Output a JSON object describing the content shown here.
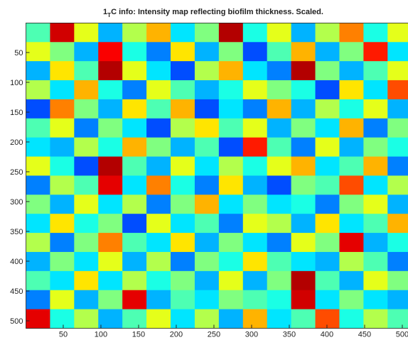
{
  "chart_data": {
    "type": "heatmap",
    "title": {
      "main": "1",
      "sub": "T",
      "rest": "C info: Intensity map reflecting biofilm thickness. Scaled."
    },
    "colormap": "jet",
    "clim": [
      0,
      1
    ],
    "xlim": [
      0.5,
      512.5
    ],
    "ylim": [
      0.5,
      512.5
    ],
    "y_reversed": true,
    "xticks": [
      50,
      100,
      150,
      200,
      250,
      300,
      350,
      400,
      450,
      500
    ],
    "yticks": [
      50,
      100,
      150,
      200,
      250,
      300,
      350,
      400,
      450,
      500
    ],
    "z": [
      [
        0.45,
        0.92,
        0.6,
        0.3,
        0.55,
        0.7,
        0.35,
        0.5,
        0.95,
        0.4,
        0.6,
        0.3,
        0.55,
        0.75,
        0.4,
        0.6
      ],
      [
        0.6,
        0.5,
        0.3,
        0.88,
        0.4,
        0.25,
        0.65,
        0.3,
        0.5,
        0.2,
        0.45,
        0.7,
        0.3,
        0.5,
        0.85,
        0.35
      ],
      [
        0.3,
        0.65,
        0.45,
        0.95,
        0.6,
        0.35,
        0.2,
        0.55,
        0.7,
        0.35,
        0.25,
        0.95,
        0.5,
        0.3,
        0.45,
        0.6
      ],
      [
        0.55,
        0.35,
        0.7,
        0.4,
        0.25,
        0.6,
        0.45,
        0.3,
        0.4,
        0.6,
        0.5,
        0.4,
        0.2,
        0.65,
        0.35,
        0.8
      ],
      [
        0.2,
        0.75,
        0.5,
        0.3,
        0.65,
        0.45,
        0.7,
        0.2,
        0.35,
        0.25,
        0.7,
        0.3,
        0.55,
        0.4,
        0.6,
        0.3
      ],
      [
        0.45,
        0.6,
        0.25,
        0.5,
        0.35,
        0.2,
        0.55,
        0.65,
        0.45,
        0.6,
        0.3,
        0.5,
        0.35,
        0.7,
        0.25,
        0.5
      ],
      [
        0.35,
        0.3,
        0.55,
        0.4,
        0.7,
        0.5,
        0.3,
        0.45,
        0.2,
        0.85,
        0.45,
        0.25,
        0.6,
        0.3,
        0.5,
        0.4
      ],
      [
        0.6,
        0.4,
        0.2,
        0.95,
        0.45,
        0.3,
        0.6,
        0.35,
        0.55,
        0.4,
        0.6,
        0.7,
        0.35,
        0.45,
        0.7,
        0.25
      ],
      [
        0.25,
        0.55,
        0.45,
        0.9,
        0.35,
        0.75,
        0.4,
        0.25,
        0.65,
        0.3,
        0.2,
        0.5,
        0.45,
        0.8,
        0.35,
        0.55
      ],
      [
        0.5,
        0.3,
        0.6,
        0.35,
        0.55,
        0.25,
        0.5,
        0.7,
        0.35,
        0.5,
        0.35,
        0.4,
        0.25,
        0.5,
        0.6,
        0.3
      ],
      [
        0.35,
        0.65,
        0.4,
        0.5,
        0.2,
        0.6,
        0.35,
        0.45,
        0.25,
        0.6,
        0.55,
        0.3,
        0.65,
        0.35,
        0.45,
        0.7
      ],
      [
        0.55,
        0.25,
        0.5,
        0.75,
        0.45,
        0.35,
        0.65,
        0.3,
        0.5,
        0.35,
        0.25,
        0.6,
        0.5,
        0.9,
        0.3,
        0.4
      ],
      [
        0.3,
        0.5,
        0.35,
        0.6,
        0.3,
        0.55,
        0.25,
        0.5,
        0.4,
        0.65,
        0.45,
        0.35,
        0.3,
        0.55,
        0.45,
        0.25
      ],
      [
        0.45,
        0.35,
        0.65,
        0.35,
        0.55,
        0.4,
        0.5,
        0.3,
        0.6,
        0.3,
        0.5,
        0.95,
        0.45,
        0.3,
        0.6,
        0.5
      ],
      [
        0.25,
        0.6,
        0.3,
        0.5,
        0.9,
        0.3,
        0.45,
        0.35,
        0.5,
        0.45,
        0.4,
        0.92,
        0.35,
        0.5,
        0.35,
        0.3
      ],
      [
        0.9,
        0.4,
        0.55,
        0.3,
        0.45,
        0.6,
        0.35,
        0.55,
        0.3,
        0.7,
        0.35,
        0.45,
        0.8,
        0.4,
        0.55,
        0.45
      ]
    ]
  }
}
